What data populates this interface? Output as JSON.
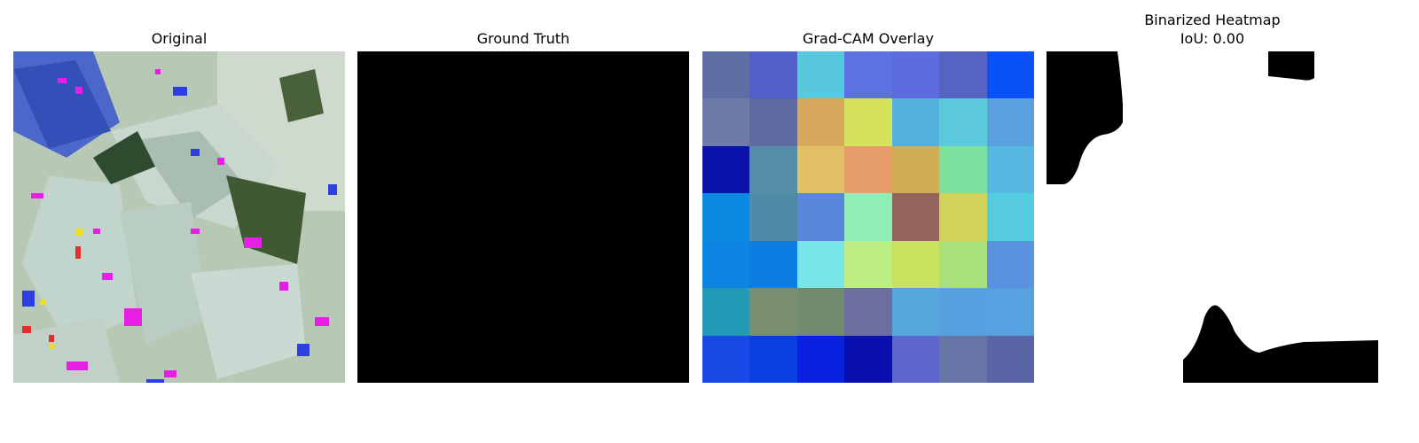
{
  "panels": [
    {
      "id": "original",
      "title": "Original"
    },
    {
      "id": "ground_truth",
      "title": "Ground Truth"
    },
    {
      "id": "gradcam_overlay",
      "title": "Grad-CAM Overlay"
    },
    {
      "id": "binarized_heatmap",
      "title": "Binarized Heatmap",
      "subtitle": "IoU: 0.00"
    }
  ],
  "gradcam_grid_colors": [
    [
      "#5f6fa6",
      "#5260cc",
      "#58c9dc",
      "#5c72e0",
      "#5c6ce0",
      "#5663c0",
      "#0a52f8"
    ],
    [
      "#6f7aa6",
      "#6069a3",
      "#d6a95c",
      "#d4e35a",
      "#56b0dc",
      "#5ccadc",
      "#5aa0dc"
    ],
    [
      "#0a14aa",
      "#568da6",
      "#e2c066",
      "#e89e6a",
      "#d0ae56",
      "#7ce0a0",
      "#56b8e0"
    ],
    [
      "#0c8ae2",
      "#4f8aa6",
      "#5a86dc",
      "#8eeeb6",
      "#93655a",
      "#d2d25a",
      "#56cce0"
    ],
    [
      "#0c84e2",
      "#0a7ee2",
      "#78e6e6",
      "#bcee82",
      "#c8e25c",
      "#a8e07a",
      "#5a92e0"
    ],
    [
      "#229ab6",
      "#7a8e6e",
      "#728a6e",
      "#6a6ea0",
      "#56a8dc",
      "#56a0e0",
      "#56a2e0"
    ],
    [
      "#1a4ae6",
      "#0a40e0",
      "#0a20e2",
      "#0a10b0",
      "#5e66cc",
      "#6674a6",
      "#5a64a6"
    ]
  ]
}
